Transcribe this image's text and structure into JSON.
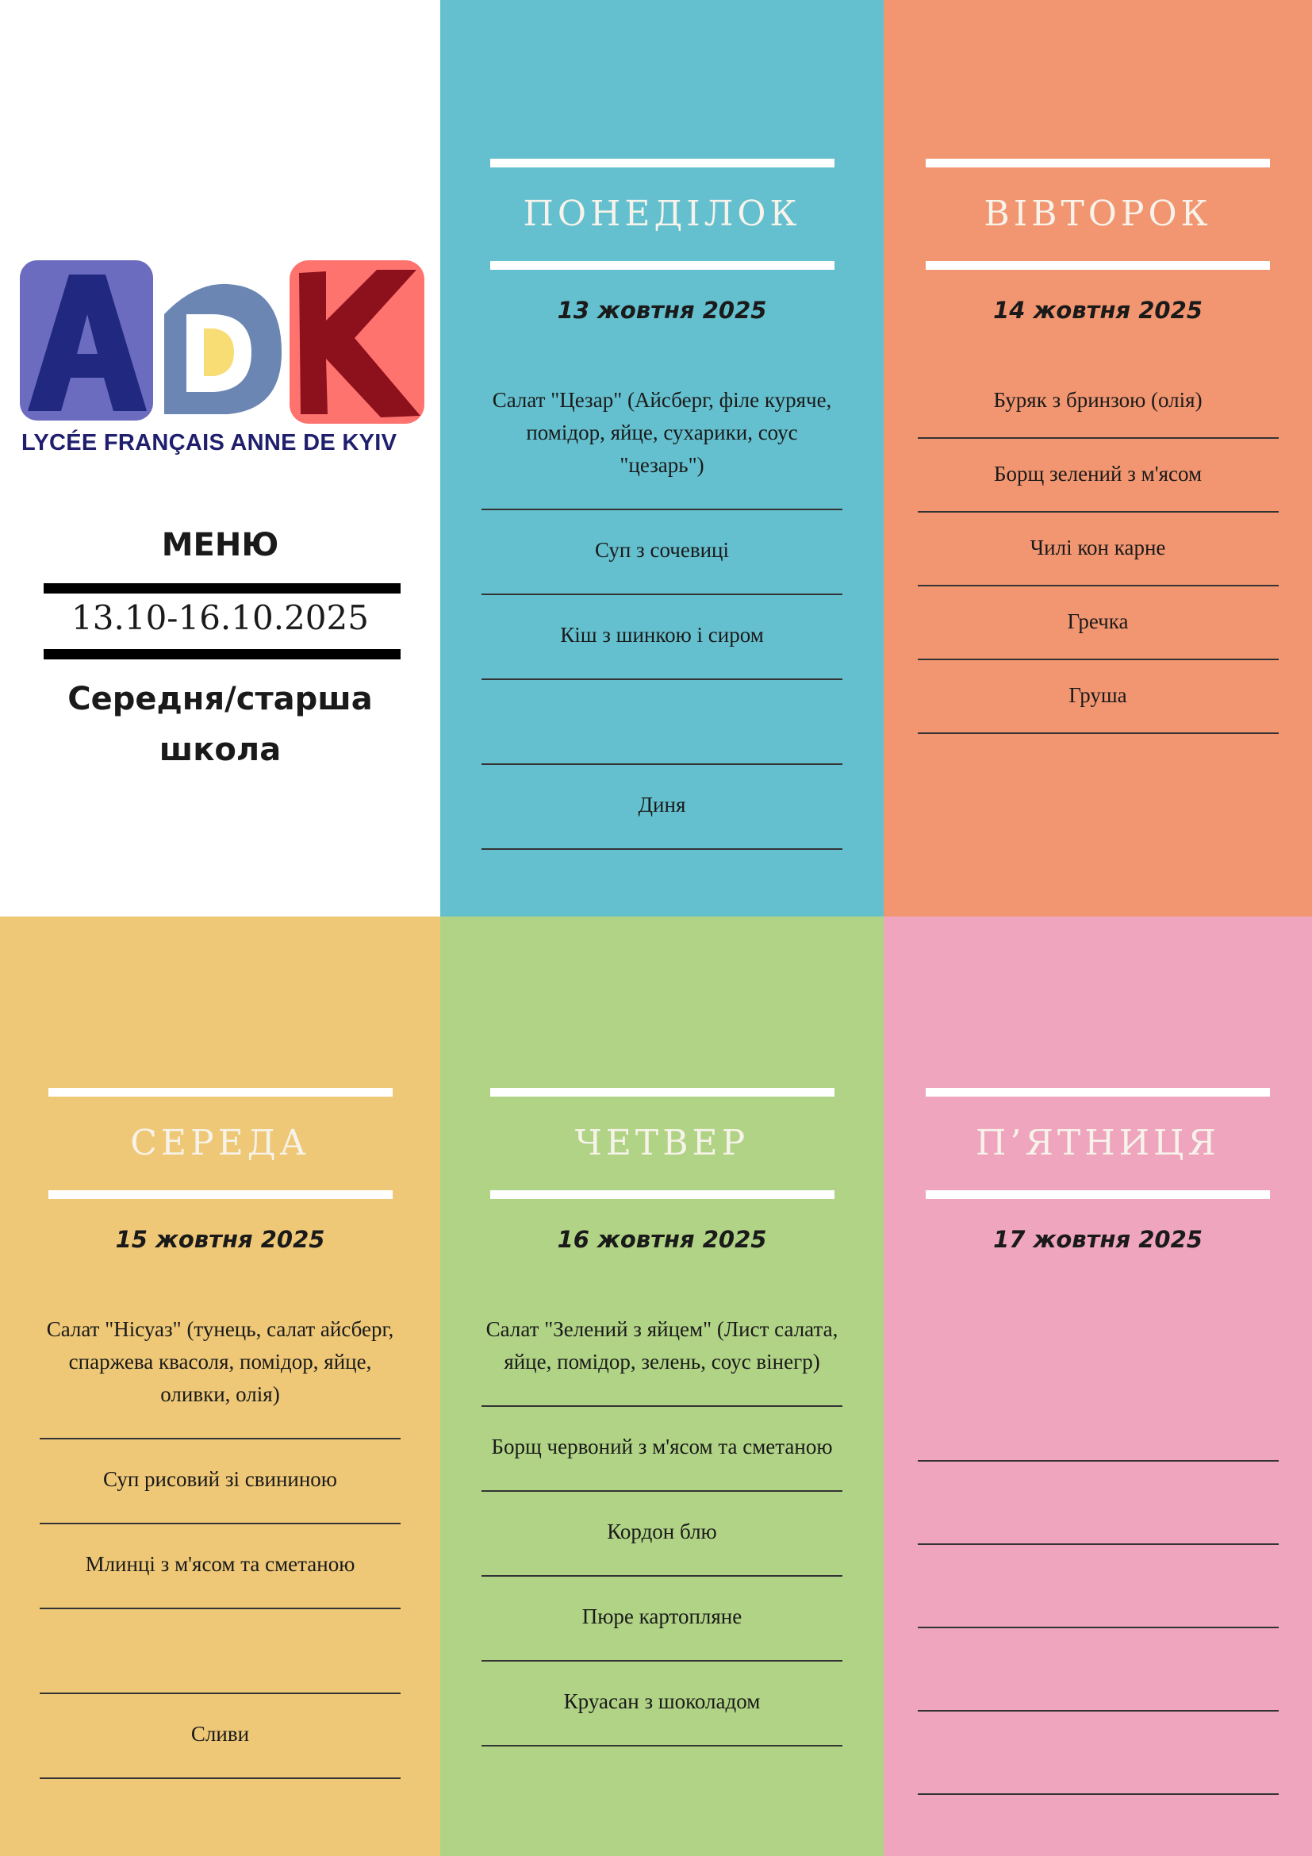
{
  "logo": {
    "letters": "ADK",
    "caption": "LYCÉE FRANÇAIS ANNE DE KYIV"
  },
  "intro": {
    "title": "МЕНЮ",
    "range": "13.10-16.10.2025",
    "audience_line1": "Середня/старша",
    "audience_line2": "школа"
  },
  "colors": {
    "monday": "#64c0cf",
    "tuesday": "#f29671",
    "wednesday": "#eec877",
    "thursday": "#b0d385",
    "friday": "#eea5bd"
  },
  "days": [
    {
      "name": "ПОНЕДІЛОК",
      "date": "13 жовтня 2025",
      "items": [
        "Салат \"Цезар\" (Айсберг, філе куряче, помідор, яйце, сухарики, соус \"цезарь\")",
        "Суп з сочевиці",
        "Кіш з шинкою і сиром",
        "",
        "Диня"
      ]
    },
    {
      "name": "ВІВТОРОК",
      "date": "14 жовтня 2025",
      "items": [
        "Буряк з бринзою (олія)",
        "Борщ зелений з м'ясом",
        "Чилі кон карне",
        "Гречка",
        "Груша"
      ]
    },
    {
      "name": "СЕРЕДА",
      "date": "15 жовтня 2025",
      "items": [
        "Салат \"Нісуаз\" (тунець, салат айсберг, спаржева квасоля, помідор, яйце, оливки, олія)",
        "Суп рисовий зі свининою",
        "Млинці з м'ясом та сметаною",
        "",
        "Сливи"
      ]
    },
    {
      "name": "ЧЕТВЕР",
      "date": "16 жовтня 2025",
      "items": [
        "Салат \"Зелений з яйцем\" (Лист салата, яйце, помідор, зелень, соус вінегр)",
        "Борщ червоний з м'ясом та сметаною",
        "Кордон блю",
        "Пюре картопляне",
        "Круасан з шоколадом"
      ]
    },
    {
      "name": "П’ЯТНИЦЯ",
      "date": "17 жовтня 2025",
      "items": [
        "",
        "",
        "",
        "",
        ""
      ]
    }
  ]
}
